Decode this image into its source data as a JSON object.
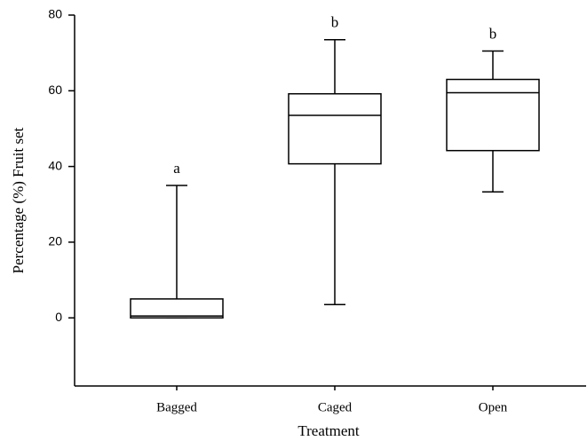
{
  "chart_data": {
    "type": "box",
    "x_label": "Treatment",
    "y_label": "Percentage (%) Fruit set",
    "categories": [
      "Bagged",
      "Caged",
      "Open"
    ],
    "min": [
      0,
      3.5,
      33.3
    ],
    "q1": [
      0,
      40.7,
      44.2
    ],
    "median": [
      0.5,
      53.5,
      59.5
    ],
    "q3": [
      5,
      59.2,
      63
    ],
    "max": [
      35,
      73.5,
      70.5
    ],
    "annotations": [
      "a",
      "b",
      "b"
    ],
    "ylim": [
      -18,
      80
    ],
    "yticks": [
      0,
      20,
      40,
      60,
      80
    ],
    "color": "#000000"
  }
}
